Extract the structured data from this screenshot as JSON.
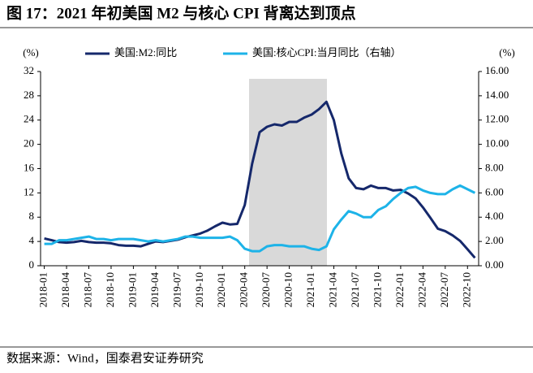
{
  "chart_data": {
    "type": "line",
    "title": "图 17：2021 年初美国 M2 与核心 CPI 背离达到顶点",
    "source": "数据来源：Wind，国泰君安证券研究",
    "y_label": "(%)",
    "y2_label": "(%)",
    "categories": [
      "2018-01",
      null,
      null,
      "2018-04",
      null,
      null,
      "2018-07",
      null,
      null,
      "2018-10",
      null,
      null,
      "2019-01",
      null,
      null,
      "2019-04",
      null,
      null,
      "2019-07",
      null,
      null,
      "2019-10",
      null,
      null,
      "2020-01",
      null,
      null,
      "2020-04",
      null,
      null,
      "2020-07",
      null,
      null,
      "2020-10",
      null,
      null,
      "2021-01",
      null,
      null,
      "2021-04",
      null,
      null,
      "2021-07",
      null,
      null,
      "2021-10",
      null,
      null,
      "2022-01",
      null,
      null,
      "2022-04",
      null,
      null,
      "2022-07",
      null,
      null,
      "2022-10",
      null
    ],
    "series": [
      {
        "name": "美国:M2:同比",
        "color": "#15286b",
        "values": [
          4.5,
          4.2,
          3.9,
          3.8,
          3.9,
          4.1,
          3.9,
          3.8,
          3.8,
          3.7,
          3.4,
          3.3,
          3.3,
          3.2,
          3.6,
          4.0,
          3.9,
          4.1,
          4.3,
          4.7,
          5.0,
          5.3,
          5.8,
          6.5,
          7.1,
          6.8,
          6.9,
          10.0,
          16.8,
          22.0,
          22.9,
          23.3,
          23.1,
          23.7,
          23.7,
          24.4,
          24.9,
          25.8,
          27.0,
          24.0,
          18.5,
          14.4,
          12.8,
          12.6,
          13.2,
          12.8,
          12.8,
          12.4,
          12.5,
          11.9,
          11.1,
          9.6,
          7.9,
          6.1,
          5.7,
          5.0,
          4.1,
          2.7,
          1.3
        ]
      },
      {
        "name": "美国:核心CPI:当月同比（右轴）",
        "color": "#1db3e8",
        "axis": "y2",
        "values": [
          1.8,
          1.8,
          2.1,
          2.1,
          2.2,
          2.3,
          2.4,
          2.2,
          2.2,
          2.1,
          2.2,
          2.2,
          2.2,
          2.1,
          2.0,
          2.1,
          2.0,
          2.1,
          2.2,
          2.4,
          2.4,
          2.3,
          2.3,
          2.3,
          2.3,
          2.4,
          2.1,
          1.4,
          1.2,
          1.2,
          1.6,
          1.7,
          1.7,
          1.6,
          1.6,
          1.6,
          1.4,
          1.3,
          1.6,
          3.0,
          3.8,
          4.5,
          4.3,
          4.0,
          4.0,
          4.6,
          4.9,
          5.5,
          6.0,
          6.4,
          6.5,
          6.2,
          6.0,
          5.9,
          5.9,
          6.3,
          6.6,
          6.3,
          6.0
        ]
      }
    ],
    "ylim": [
      0,
      32
    ],
    "yticks": [
      0,
      4,
      8,
      12,
      16,
      20,
      24,
      28,
      32
    ],
    "y2lim": [
      0,
      16
    ],
    "y2ticks": [
      {
        "value": 0,
        "label": "0.00"
      },
      {
        "value": 2,
        "label": "2.00"
      },
      {
        "value": 4,
        "label": "4.00"
      },
      {
        "value": 6,
        "label": "6.00"
      },
      {
        "value": 8,
        "label": "8.00"
      },
      {
        "value": 10,
        "label": "10.00"
      },
      {
        "value": 12,
        "label": "12.00"
      },
      {
        "value": 14,
        "label": "14.00"
      },
      {
        "value": 16,
        "label": "16.00"
      }
    ],
    "legend": "top"
  }
}
